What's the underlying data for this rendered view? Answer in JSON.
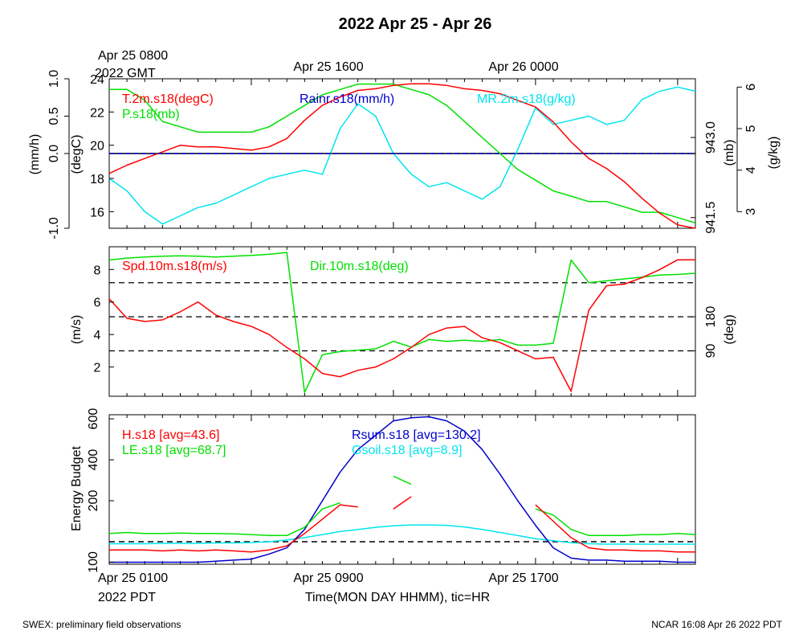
{
  "title": "2022 Apr 25 - Apr 26",
  "footer": {
    "left": "SWEX: preliminary field observations",
    "right": "NCAR 16:08 Apr 26 2022 PDT"
  },
  "top_axis": {
    "start_line1": "Apr 25 0800",
    "start_line2": "2022 GMT",
    "tick1": "Apr 25 1600",
    "tick2": "Apr 26 0000"
  },
  "bottom_axis": {
    "start_line1": "Apr 25 0100",
    "start_line2": "2022 PDT",
    "tick1": "Apr 25 0900",
    "tick2": "Apr 25 1700",
    "label": "Time(MON DAY HHMM), tic=HR"
  },
  "colors": {
    "red": "#ff0000",
    "green": "#00e000",
    "blue": "#0000cc",
    "cyan": "#00e5ee",
    "black": "#000000"
  },
  "chart_data": [
    {
      "type": "line",
      "panel": "top",
      "x_hours_pdt": [
        0,
        33
      ],
      "axes": {
        "rain": {
          "label": "(mm/h)",
          "ticks": [
            "1.0",
            "0.5",
            "0.0",
            "-1.0"
          ],
          "range": [
            -1.0,
            1.0
          ]
        },
        "temp": {
          "label": "(degC)",
          "ticks": [
            "24",
            "22",
            "20",
            "18",
            "16"
          ],
          "range": [
            15,
            24
          ]
        },
        "pres": {
          "label": "(mb)",
          "ticks": [
            "943.0",
            "941.5"
          ],
          "range": [
            941.3,
            944.1
          ]
        },
        "mr": {
          "label": "(g/kg)",
          "ticks": [
            "6",
            "5",
            "4",
            "3"
          ],
          "range": [
            2.6,
            6.2
          ]
        }
      },
      "series": [
        {
          "name": "T.2m.s18(degC)",
          "color": "red",
          "axis": "temp",
          "x": [
            0,
            1,
            2,
            3,
            4,
            5,
            6,
            7,
            8,
            9,
            10,
            11,
            12,
            13,
            14,
            15,
            16,
            17,
            18,
            19,
            20,
            21,
            22,
            23,
            24,
            25,
            26,
            27,
            28,
            29,
            30,
            31,
            32,
            33
          ],
          "values": [
            18.3,
            18.8,
            19.2,
            19.6,
            20.0,
            19.9,
            19.9,
            19.8,
            19.7,
            19.9,
            20.4,
            21.5,
            22.4,
            22.9,
            23.3,
            23.4,
            23.6,
            23.7,
            23.7,
            23.6,
            23.4,
            23.3,
            23.1,
            22.7,
            22.3,
            21.4,
            20.2,
            19.2,
            18.6,
            17.8,
            16.8,
            15.9,
            15.2,
            15.0
          ]
        },
        {
          "name": "Rainr.s18(mm/h)",
          "color": "blue",
          "axis": "rain",
          "x": [
            0,
            33
          ],
          "values": [
            0.0,
            0.0
          ]
        },
        {
          "name": "P.s18(mb)",
          "color": "green",
          "axis": "pres",
          "x": [
            0,
            1,
            2,
            3,
            4,
            5,
            6,
            7,
            8,
            9,
            10,
            11,
            12,
            13,
            14,
            15,
            16,
            17,
            18,
            19,
            20,
            21,
            22,
            23,
            24,
            25,
            26,
            27,
            28,
            29,
            30,
            31,
            32,
            33
          ],
          "values": [
            943.9,
            943.9,
            943.7,
            943.3,
            943.2,
            943.1,
            943.1,
            943.1,
            943.1,
            943.2,
            943.4,
            943.6,
            943.8,
            943.9,
            944.0,
            944.0,
            944.0,
            943.9,
            943.8,
            943.6,
            943.3,
            943.0,
            942.7,
            942.4,
            942.2,
            942.0,
            941.9,
            941.8,
            941.8,
            941.7,
            941.6,
            941.6,
            941.5,
            941.4
          ]
        },
        {
          "name": "MR.2m.s18(g/kg)",
          "color": "cyan",
          "axis": "mr",
          "x": [
            0,
            1,
            2,
            3,
            4,
            5,
            6,
            7,
            8,
            9,
            10,
            11,
            12,
            13,
            14,
            15,
            16,
            17,
            18,
            19,
            20,
            21,
            22,
            23,
            24,
            25,
            26,
            27,
            28,
            29,
            30,
            31,
            32,
            33
          ],
          "values": [
            3.8,
            3.5,
            3.0,
            2.7,
            2.9,
            3.1,
            3.2,
            3.4,
            3.6,
            3.8,
            3.9,
            4.0,
            3.9,
            5.0,
            5.6,
            5.3,
            4.4,
            3.9,
            3.6,
            3.7,
            3.5,
            3.3,
            3.6,
            4.5,
            5.5,
            5.1,
            5.2,
            5.3,
            5.1,
            5.2,
            5.7,
            5.9,
            6.0,
            5.9
          ]
        }
      ]
    },
    {
      "type": "line",
      "panel": "middle",
      "x_hours_pdt": [
        0,
        33
      ],
      "axes": {
        "spd": {
          "label": "(m/s)",
          "ticks": [
            "8",
            "6",
            "4",
            "2"
          ],
          "range": [
            0.2,
            9.4
          ]
        },
        "dir": {
          "label": "(deg)",
          "ticks": [
            "180",
            "90"
          ],
          "range": [
            -30,
            365
          ]
        }
      },
      "hlines_dir": [
        90,
        180,
        270
      ],
      "series": [
        {
          "name": "Spd.10m.s18(m/s)",
          "color": "red",
          "axis": "spd",
          "x": [
            0,
            1,
            2,
            3,
            4,
            5,
            6,
            7,
            8,
            9,
            10,
            11,
            12,
            13,
            14,
            15,
            16,
            17,
            18,
            19,
            20,
            21,
            22,
            23,
            24,
            25,
            26,
            27,
            28,
            29,
            30,
            31,
            32,
            33
          ],
          "values": [
            6.2,
            5.0,
            4.8,
            4.9,
            5.4,
            6.0,
            5.2,
            4.8,
            4.5,
            4.0,
            3.2,
            2.5,
            1.6,
            1.4,
            1.8,
            2.0,
            2.5,
            3.2,
            4.0,
            4.4,
            4.5,
            3.8,
            3.5,
            3.0,
            2.5,
            2.6,
            0.5,
            5.5,
            7.0,
            7.1,
            7.5,
            8.0,
            8.6,
            8.6
          ]
        },
        {
          "name": "Dir.10m.s18(deg)",
          "color": "green",
          "axis": "dir",
          "x": [
            0,
            1,
            2,
            3,
            4,
            5,
            6,
            7,
            8,
            9,
            10,
            11,
            12,
            13,
            14,
            15,
            16,
            17,
            18,
            19,
            20,
            21,
            22,
            23,
            24,
            25,
            26,
            27,
            28,
            29,
            30,
            31,
            32,
            33
          ],
          "values": [
            330,
            335,
            338,
            340,
            341,
            340,
            338,
            340,
            342,
            345,
            350,
            -20,
            80,
            88,
            92,
            95,
            115,
            100,
            120,
            115,
            118,
            115,
            120,
            105,
            105,
            110,
            330,
            270,
            275,
            280,
            285,
            290,
            292,
            295
          ]
        }
      ]
    },
    {
      "type": "line",
      "panel": "bottom",
      "x_hours_pdt": [
        0,
        33
      ],
      "axes": {
        "energy": {
          "label": "Energy Budget",
          "ticks": [
            "600",
            "400",
            "200",
            "100"
          ],
          "range": [
            -110,
            620
          ]
        }
      },
      "hline": 0,
      "series": [
        {
          "name": "H.s18 [avg=43.6]",
          "color": "red",
          "x": [
            0,
            1,
            2,
            3,
            4,
            5,
            6,
            7,
            8,
            9,
            10,
            11,
            12,
            13,
            14,
            15,
            16,
            17,
            18,
            19,
            20,
            21,
            22,
            23,
            24,
            25,
            26,
            27,
            28,
            29,
            30,
            31,
            32,
            33
          ],
          "values": [
            -40,
            -40,
            -40,
            -45,
            -40,
            -45,
            -40,
            -45,
            -50,
            -40,
            -20,
            40,
            110,
            180,
            170,
            null,
            160,
            220,
            null,
            null,
            null,
            null,
            null,
            null,
            180,
            100,
            20,
            -30,
            -40,
            -40,
            -45,
            -45,
            -50,
            -50
          ]
        },
        {
          "name": "LE.s18 [avg=68.7]",
          "color": "green",
          "x": [
            0,
            1,
            2,
            3,
            4,
            5,
            6,
            7,
            8,
            9,
            10,
            11,
            12,
            13,
            14,
            15,
            16,
            17,
            18,
            19,
            20,
            21,
            22,
            23,
            24,
            25,
            26,
            27,
            28,
            29,
            30,
            31,
            32,
            33
          ],
          "values": [
            40,
            45,
            40,
            40,
            42,
            40,
            40,
            38,
            35,
            30,
            30,
            70,
            160,
            190,
            null,
            null,
            320,
            280,
            null,
            null,
            null,
            null,
            null,
            null,
            160,
            130,
            60,
            30,
            30,
            30,
            35,
            35,
            40,
            35
          ]
        },
        {
          "name": "Rsum.s18 [avg=130.2]",
          "color": "blue",
          "x": [
            0,
            1,
            2,
            3,
            4,
            5,
            6,
            7,
            8,
            9,
            10,
            11,
            12,
            13,
            14,
            15,
            16,
            17,
            18,
            19,
            20,
            21,
            22,
            23,
            24,
            25,
            26,
            27,
            28,
            29,
            30,
            31,
            32,
            33
          ],
          "values": [
            -100,
            -100,
            -100,
            -100,
            -100,
            -100,
            -95,
            -90,
            -85,
            -60,
            -30,
            60,
            200,
            340,
            450,
            520,
            590,
            605,
            610,
            590,
            540,
            450,
            330,
            200,
            80,
            -30,
            -80,
            -90,
            -90,
            -95,
            -95,
            -95,
            -100,
            -100
          ]
        },
        {
          "name": "Gsoil.s18 [avg=8.9]",
          "color": "cyan",
          "x": [
            0,
            1,
            2,
            3,
            4,
            5,
            6,
            7,
            8,
            9,
            10,
            11,
            12,
            13,
            14,
            15,
            16,
            17,
            18,
            19,
            20,
            21,
            22,
            23,
            24,
            25,
            26,
            27,
            28,
            29,
            30,
            31,
            32,
            33
          ],
          "values": [
            -10,
            -10,
            -10,
            -8,
            -8,
            -8,
            -6,
            -6,
            -4,
            0,
            8,
            20,
            35,
            50,
            60,
            70,
            78,
            82,
            82,
            80,
            72,
            60,
            45,
            30,
            15,
            5,
            -5,
            -10,
            -12,
            -12,
            -12,
            -12,
            -12,
            -12
          ]
        }
      ]
    }
  ]
}
